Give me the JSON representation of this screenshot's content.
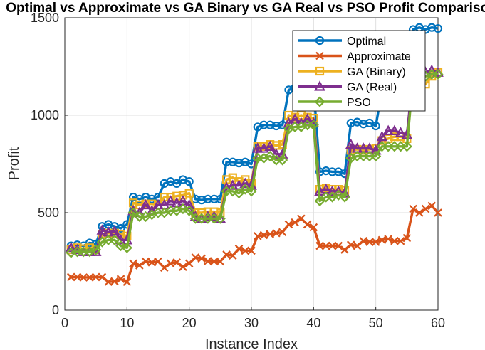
{
  "chart_data": {
    "type": "line",
    "title": "Optimal vs Approximate vs GA Binary vs GA Real vs PSO Profit Comparison",
    "xlabel": "Instance Index",
    "ylabel": "Profit",
    "xlim": [
      0,
      60
    ],
    "ylim": [
      0,
      1500
    ],
    "xticks": [
      "0",
      "10",
      "20",
      "30",
      "40",
      "50",
      "60"
    ],
    "yticks": [
      "0",
      "500",
      "1000",
      "1500"
    ],
    "grid": true,
    "legend_position": "top-right",
    "x": [
      1,
      2,
      3,
      4,
      5,
      6,
      7,
      8,
      9,
      10,
      11,
      12,
      13,
      14,
      15,
      16,
      17,
      18,
      19,
      20,
      21,
      22,
      23,
      24,
      25,
      26,
      27,
      28,
      29,
      30,
      31,
      32,
      33,
      34,
      35,
      36,
      37,
      38,
      39,
      40,
      41,
      42,
      43,
      44,
      45,
      46,
      47,
      48,
      49,
      50,
      51,
      52,
      53,
      54,
      55,
      56,
      57,
      58,
      59,
      60
    ],
    "series": [
      {
        "name": "Optimal",
        "color": "#0072BD",
        "marker": "circle",
        "values": [
          330,
          335,
          330,
          345,
          340,
          430,
          440,
          430,
          420,
          440,
          580,
          570,
          580,
          570,
          580,
          650,
          660,
          650,
          670,
          660,
          570,
          565,
          570,
          570,
          570,
          760,
          760,
          755,
          760,
          750,
          940,
          950,
          950,
          945,
          950,
          1130,
          1140,
          1130,
          1150,
          1140,
          710,
          715,
          710,
          710,
          700,
          960,
          965,
          955,
          960,
          945,
          1130,
          1140,
          1130,
          1140,
          1140,
          1440,
          1450,
          1440,
          1450,
          1445
        ]
      },
      {
        "name": "Approximate",
        "color": "#D95319",
        "marker": "x",
        "values": [
          170,
          170,
          168,
          168,
          170,
          170,
          145,
          148,
          160,
          145,
          240,
          230,
          250,
          245,
          250,
          218,
          240,
          245,
          222,
          240,
          270,
          265,
          252,
          250,
          250,
          285,
          280,
          315,
          305,
          305,
          380,
          385,
          390,
          395,
          400,
          440,
          450,
          470,
          440,
          425,
          330,
          330,
          330,
          330,
          310,
          335,
          330,
          355,
          350,
          350,
          360,
          365,
          355,
          355,
          370,
          520,
          500,
          520,
          535,
          500
        ]
      },
      {
        "name": "GA (Binary)",
        "color": "#EDB120",
        "marker": "square",
        "values": [
          310,
          320,
          315,
          320,
          310,
          390,
          395,
          395,
          390,
          380,
          550,
          540,
          545,
          545,
          540,
          580,
          580,
          585,
          590,
          600,
          500,
          500,
          505,
          505,
          500,
          670,
          680,
          660,
          670,
          650,
          840,
          840,
          850,
          845,
          850,
          1000,
          990,
          1000,
          990,
          985,
          620,
          625,
          620,
          620,
          615,
          820,
          825,
          820,
          825,
          830,
          870,
          880,
          890,
          890,
          880,
          1170,
          1180,
          1160,
          1200,
          1220
        ]
      },
      {
        "name": "GA (Real)",
        "color": "#7E2F8E",
        "marker": "triangle",
        "values": [
          320,
          310,
          300,
          300,
          300,
          410,
          400,
          405,
          360,
          360,
          510,
          500,
          540,
          510,
          540,
          540,
          560,
          550,
          560,
          540,
          480,
          470,
          480,
          480,
          470,
          630,
          640,
          640,
          650,
          640,
          830,
          830,
          840,
          800,
          800,
          960,
          980,
          960,
          980,
          960,
          610,
          620,
          610,
          610,
          600,
          850,
          830,
          830,
          830,
          820,
          890,
          920,
          920,
          910,
          900,
          1200,
          1210,
          1220,
          1230,
          1220
        ]
      },
      {
        "name": "PSO",
        "color": "#77AC30",
        "marker": "diamond",
        "values": [
          295,
          300,
          300,
          300,
          310,
          350,
          360,
          360,
          330,
          320,
          500,
          480,
          480,
          490,
          500,
          500,
          510,
          510,
          520,
          510,
          470,
          470,
          470,
          470,
          470,
          610,
          610,
          600,
          620,
          610,
          780,
          780,
          790,
          770,
          770,
          930,
          940,
          940,
          950,
          950,
          560,
          580,
          580,
          590,
          580,
          780,
          790,
          790,
          790,
          790,
          840,
          840,
          840,
          840,
          840,
          1190,
          1200,
          1200,
          1210,
          1210
        ]
      }
    ]
  }
}
